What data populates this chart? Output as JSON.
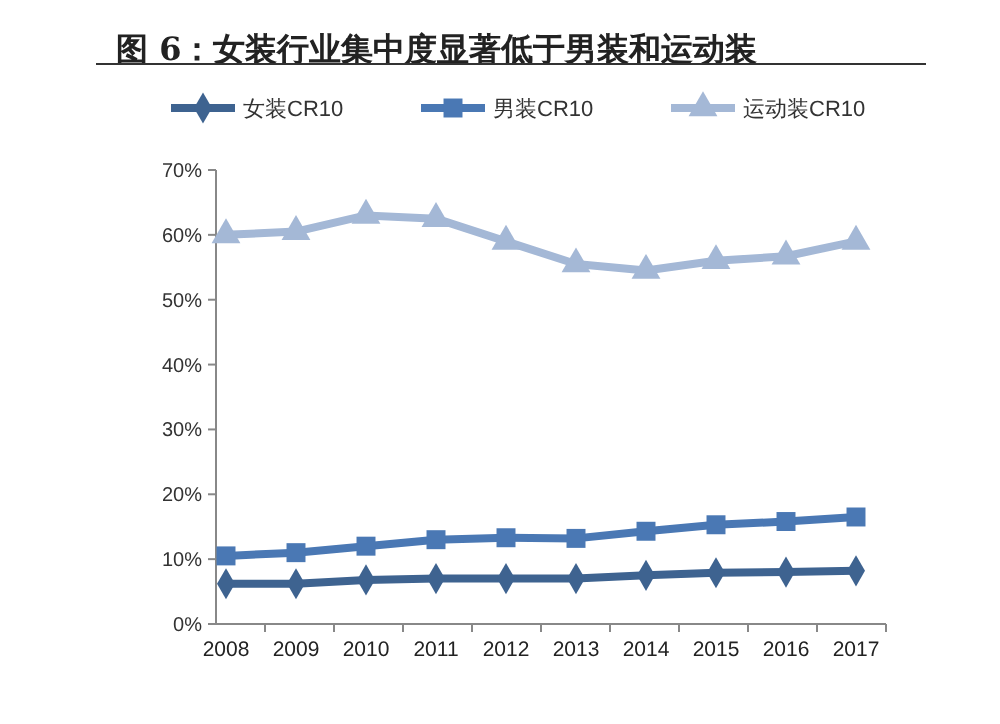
{
  "chart_data": {
    "type": "line",
    "title": "图 6：女装行业集中度显著低于男装和运动装",
    "categories": [
      "2008",
      "2009",
      "2010",
      "2011",
      "2012",
      "2013",
      "2014",
      "2015",
      "2016",
      "2017"
    ],
    "series": [
      {
        "name": "女装CR10",
        "color": "#3e6390",
        "marker": "diamond",
        "values": [
          6.2,
          6.2,
          6.8,
          7,
          7,
          7,
          7.5,
          7.9,
          8,
          8.2
        ]
      },
      {
        "name": "男装CR10",
        "color": "#4a78b4",
        "marker": "square",
        "values": [
          10.5,
          11,
          12,
          13,
          13.3,
          13.2,
          14.3,
          15.3,
          15.8,
          16.5
        ]
      },
      {
        "name": "运动装CR10",
        "color": "#a4b8d6",
        "marker": "triangle",
        "values": [
          60,
          60.5,
          63,
          62.5,
          59,
          55.5,
          54.5,
          56,
          56.7,
          59
        ]
      }
    ],
    "ylim": [
      0,
      70
    ],
    "yticks": [
      {
        "value": 0,
        "label": "0%"
      },
      {
        "value": 10,
        "label": "10%"
      },
      {
        "value": 20,
        "label": "20%"
      },
      {
        "value": 30,
        "label": "30%"
      },
      {
        "value": 40,
        "label": "40%"
      },
      {
        "value": 50,
        "label": "50%"
      },
      {
        "value": 60,
        "label": "60%"
      },
      {
        "value": 70,
        "label": "70%"
      }
    ],
    "grid": false,
    "legend": "top"
  }
}
